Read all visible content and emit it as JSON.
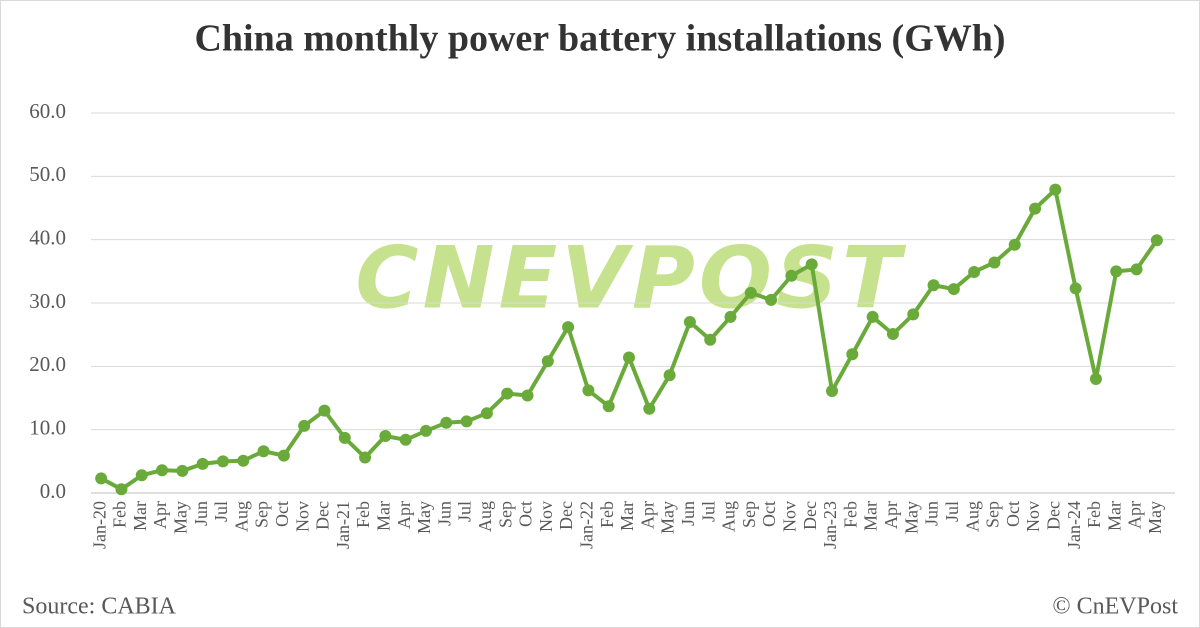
{
  "chart_data": {
    "type": "line",
    "title": "China monthly power battery installations (GWh)",
    "source": "Source: CABIA",
    "credit": "© CnEVPost",
    "watermark": "CNEVPOST",
    "categories": [
      "Jan-20",
      "Feb",
      "Mar",
      "Apr",
      "May",
      "Jun",
      "Jul",
      "Aug",
      "Sep",
      "Oct",
      "Nov",
      "Dec",
      "Jan-21",
      "Feb",
      "Mar",
      "Apr",
      "May",
      "Jun",
      "Jul",
      "Aug",
      "Sep",
      "Oct",
      "Nov",
      "Dec",
      "Jan-22",
      "Feb",
      "Mar",
      "Apr",
      "May",
      "Jun",
      "Jul",
      "Aug",
      "Sep",
      "Oct",
      "Nov",
      "Dec",
      "Jan-23",
      "Feb",
      "Mar",
      "Apr",
      "May",
      "Jun",
      "Jul",
      "Aug",
      "Sep",
      "Oct",
      "Nov",
      "Dec",
      "Jan-24",
      "Feb",
      "Mar",
      "Apr",
      "May"
    ],
    "values": [
      2.3,
      0.6,
      2.8,
      3.6,
      3.5,
      4.6,
      5.0,
      5.1,
      6.6,
      5.9,
      10.6,
      13.0,
      8.7,
      5.6,
      9.0,
      8.4,
      9.8,
      11.1,
      11.3,
      12.6,
      15.7,
      15.4,
      20.8,
      26.2,
      16.2,
      13.7,
      21.4,
      13.3,
      18.6,
      27.0,
      24.2,
      27.8,
      31.6,
      30.5,
      34.3,
      36.1,
      16.1,
      21.9,
      27.8,
      25.1,
      28.2,
      32.8,
      32.2,
      34.9,
      36.4,
      39.2,
      44.9,
      47.9,
      32.3,
      18.0,
      35.0,
      35.3,
      39.9
    ],
    "color": "#6aaa3a",
    "ylim": [
      0,
      60
    ],
    "yticks": [
      {
        "value": 0,
        "label": "0.0"
      },
      {
        "value": 10,
        "label": "10.0"
      },
      {
        "value": 20,
        "label": "20.0"
      },
      {
        "value": 30,
        "label": "30.0"
      },
      {
        "value": 40,
        "label": "40.0"
      },
      {
        "value": 50,
        "label": "50.0"
      },
      {
        "value": 60,
        "label": "60.0"
      }
    ],
    "grid": true
  }
}
